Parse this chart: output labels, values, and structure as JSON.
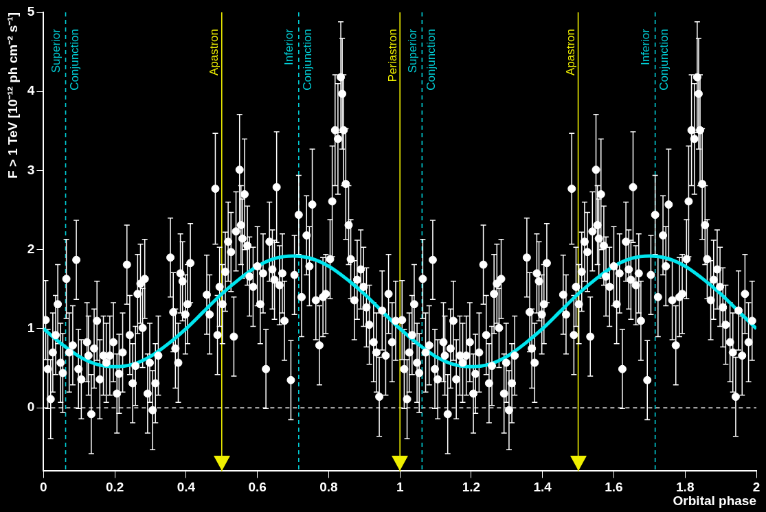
{
  "chart_data": {
    "type": "scatter",
    "xlabel": "Orbital phase",
    "ylabel": "F > 1 TeV [10⁻¹² ph cm⁻² s⁻¹]",
    "xlim": [
      0,
      2
    ],
    "xticks": [
      0,
      {
        "value": 0.2,
        "label": "0.2"
      },
      {
        "value": 0.4,
        "label": "0.4"
      },
      {
        "value": 0.6,
        "label": "0.6"
      },
      {
        "value": 0.8,
        "label": "0.8"
      },
      1,
      {
        "value": 1.2,
        "label": "1.2"
      },
      {
        "value": 1.4,
        "label": "1.4"
      },
      {
        "value": 1.6,
        "label": "1.6"
      },
      {
        "value": 1.8,
        "label": "1.8"
      },
      2
    ],
    "ylim": [
      -0.8,
      5
    ],
    "yticks": [
      0,
      1,
      2,
      3,
      4,
      5
    ],
    "grid": false,
    "legend": false,
    "series": [
      {
        "color": "#ffffff",
        "marker": "circle",
        "x": [
          0.006,
          0.012,
          0.02,
          0.026,
          0.034,
          0.04,
          0.048,
          0.054,
          0.064,
          0.072,
          0.082,
          0.092,
          0.098,
          0.106,
          0.122,
          0.126,
          0.134,
          0.142,
          0.15,
          0.158,
          0.168,
          0.176,
          0.186,
          0.196,
          0.206,
          0.212,
          0.222,
          0.234,
          0.242,
          0.25,
          0.258,
          0.264,
          0.272,
          0.278,
          0.284,
          0.292,
          0.298,
          0.306,
          0.314,
          0.322,
          0.356,
          0.364,
          0.37,
          0.378,
          0.384,
          0.39,
          0.398,
          0.404,
          0.412,
          0.458,
          0.466,
          0.482,
          0.488,
          0.494,
          0.502,
          0.51,
          0.518,
          0.526,
          0.534,
          0.54,
          0.55,
          0.554,
          0.558,
          0.564,
          0.572,
          0.578,
          0.588,
          0.6,
          0.608,
          0.616,
          0.624,
          0.634,
          0.642,
          0.648,
          0.654,
          0.662,
          0.67,
          0.676,
          0.694,
          0.704,
          0.716,
          0.724,
          0.738,
          0.746,
          0.754,
          0.764,
          0.774,
          0.784,
          0.792,
          0.804,
          0.81,
          0.818,
          0.826,
          0.834,
          0.838,
          0.842,
          0.848,
          0.856,
          0.862,
          0.872,
          0.88,
          0.89,
          0.898,
          0.906,
          0.914,
          0.926,
          0.934,
          0.942,
          0.95,
          0.96,
          0.968,
          0.978,
          0.988,
          1.006,
          1.012,
          1.02,
          1.026,
          1.034,
          1.04,
          1.048,
          1.054,
          1.064,
          1.072,
          1.082,
          1.092,
          1.098,
          1.106,
          1.122,
          1.126,
          1.134,
          1.142,
          1.15,
          1.158,
          1.168,
          1.176,
          1.186,
          1.196,
          1.206,
          1.212,
          1.222,
          1.234,
          1.242,
          1.25,
          1.258,
          1.264,
          1.272,
          1.278,
          1.284,
          1.292,
          1.298,
          1.306,
          1.314,
          1.322,
          1.356,
          1.364,
          1.37,
          1.378,
          1.384,
          1.39,
          1.398,
          1.404,
          1.412,
          1.458,
          1.466,
          1.482,
          1.488,
          1.494,
          1.502,
          1.51,
          1.518,
          1.526,
          1.534,
          1.54,
          1.55,
          1.554,
          1.558,
          1.564,
          1.572,
          1.578,
          1.588,
          1.6,
          1.608,
          1.616,
          1.624,
          1.634,
          1.642,
          1.648,
          1.654,
          1.662,
          1.67,
          1.676,
          1.694,
          1.704,
          1.716,
          1.724,
          1.738,
          1.746,
          1.754,
          1.764,
          1.774,
          1.784,
          1.792,
          1.804,
          1.81,
          1.818,
          1.826,
          1.834,
          1.838,
          1.842,
          1.848,
          1.856,
          1.862,
          1.872,
          1.88,
          1.89,
          1.898,
          1.906,
          1.914,
          1.926,
          1.934,
          1.942,
          1.95,
          1.96,
          1.968,
          1.978,
          1.988
        ],
        "values": [
          1.11,
          0.49,
          0.11,
          0.7,
          0.92,
          1.31,
          0.57,
          0.44,
          1.63,
          0.7,
          0.79,
          1.87,
          0.49,
          0.36,
          0.83,
          0.66,
          -0.08,
          0.75,
          1.1,
          0.36,
          0.66,
          0.57,
          0.66,
          0.83,
          0.18,
          0.43,
          0.7,
          1.81,
          0.92,
          0.31,
          0.53,
          1.44,
          1.57,
          1.01,
          1.63,
          0.18,
          0.57,
          -0.03,
          0.31,
          0.66,
          1.9,
          1.21,
          0.75,
          0.57,
          1.7,
          1.6,
          1.18,
          1.31,
          1.83,
          1.43,
          1.18,
          2.77,
          0.92,
          1.53,
          1.31,
          1.72,
          2.1,
          1.97,
          0.9,
          2.23,
          3.01,
          2.31,
          2.14,
          2.7,
          2.05,
          1.66,
          1.53,
          1.79,
          1.31,
          1.7,
          0.49,
          2.1,
          1.75,
          1.62,
          2.79,
          1.55,
          1.7,
          1.1,
          0.35,
          1.68,
          2.44,
          1.4,
          2.18,
          1.79,
          2.57,
          1.36,
          0.79,
          1.4,
          1.44,
          1.88,
          2.61,
          3.51,
          3.4,
          4.18,
          3.97,
          3.51,
          2.83,
          2.31,
          1.88,
          1.36,
          1.62,
          1.75,
          1.53,
          1.27,
          1.05,
          0.83,
          0.7,
          0.14,
          1.23,
          0.66,
          1.44,
          0.83,
          1.1,
          1.11,
          0.49,
          0.11,
          0.7,
          0.92,
          1.31,
          0.57,
          0.44,
          1.63,
          0.7,
          0.79,
          1.87,
          0.49,
          0.36,
          0.83,
          0.66,
          -0.08,
          0.75,
          1.1,
          0.36,
          0.66,
          0.57,
          0.66,
          0.83,
          0.18,
          0.43,
          0.7,
          1.81,
          0.92,
          0.31,
          0.53,
          1.44,
          1.57,
          1.01,
          1.63,
          0.18,
          0.57,
          -0.03,
          0.31,
          0.66,
          1.9,
          1.21,
          0.75,
          0.57,
          1.7,
          1.6,
          1.18,
          1.31,
          1.83,
          1.43,
          1.18,
          2.77,
          0.92,
          1.53,
          1.31,
          1.72,
          2.1,
          1.97,
          0.9,
          2.23,
          3.01,
          2.31,
          2.14,
          2.7,
          2.05,
          1.66,
          1.53,
          1.79,
          1.31,
          1.7,
          0.49,
          2.1,
          1.75,
          1.62,
          2.79,
          1.55,
          1.7,
          1.1,
          0.35,
          1.68,
          2.44,
          1.4,
          2.18,
          1.79,
          2.57,
          1.36,
          0.79,
          1.4,
          1.44,
          1.88,
          2.61,
          3.51,
          3.4,
          4.18,
          3.97,
          3.51,
          2.83,
          2.31,
          1.88,
          1.36,
          1.62,
          1.75,
          1.53,
          1.27,
          1.05,
          0.83,
          0.7,
          0.14,
          1.23,
          0.66,
          1.44,
          0.83,
          1.1
        ],
        "errors": [
          0.5,
          0.5,
          0.5,
          0.5,
          0.5,
          0.5,
          0.5,
          0.5,
          0.5,
          0.5,
          0.5,
          0.5,
          0.5,
          0.5,
          0.5,
          0.5,
          0.5,
          0.5,
          0.5,
          0.5,
          0.5,
          0.5,
          0.5,
          0.5,
          0.5,
          0.5,
          0.5,
          0.5,
          0.5,
          0.5,
          0.5,
          0.5,
          0.5,
          0.5,
          0.5,
          0.5,
          0.5,
          0.5,
          0.5,
          0.5,
          0.5,
          0.5,
          0.5,
          0.5,
          0.5,
          0.5,
          0.5,
          0.5,
          0.5,
          0.5,
          0.5,
          0.7,
          0.5,
          0.5,
          0.5,
          0.5,
          0.5,
          0.5,
          0.5,
          0.5,
          0.7,
          0.5,
          0.5,
          0.7,
          0.5,
          0.5,
          0.5,
          0.5,
          0.5,
          0.5,
          0.5,
          0.5,
          0.5,
          0.5,
          0.7,
          0.5,
          0.5,
          0.5,
          0.5,
          0.5,
          0.5,
          0.5,
          0.5,
          0.5,
          0.7,
          0.5,
          0.5,
          0.5,
          0.5,
          0.5,
          0.7,
          0.7,
          0.7,
          0.7,
          0.7,
          0.7,
          0.7,
          0.5,
          0.5,
          0.5,
          0.5,
          0.5,
          0.5,
          0.5,
          0.5,
          0.5,
          0.5,
          0.5,
          0.5,
          0.5,
          0.5,
          0.5,
          0.5,
          0.5,
          0.5,
          0.5,
          0.5,
          0.5,
          0.5,
          0.5,
          0.5,
          0.5,
          0.5,
          0.5,
          0.5,
          0.5,
          0.5,
          0.5,
          0.5,
          0.5,
          0.5,
          0.5,
          0.5,
          0.5,
          0.5,
          0.5,
          0.5,
          0.5,
          0.5,
          0.5,
          0.5,
          0.5,
          0.5,
          0.5,
          0.5,
          0.5,
          0.5,
          0.5,
          0.5,
          0.5,
          0.5,
          0.5,
          0.5,
          0.5,
          0.5,
          0.5,
          0.5,
          0.5,
          0.5,
          0.5,
          0.5,
          0.5,
          0.5,
          0.5,
          0.7,
          0.5,
          0.5,
          0.5,
          0.5,
          0.5,
          0.5,
          0.5,
          0.5,
          0.7,
          0.5,
          0.5,
          0.7,
          0.5,
          0.5,
          0.5,
          0.5,
          0.5,
          0.5,
          0.5,
          0.5,
          0.5,
          0.5,
          0.7,
          0.5,
          0.5,
          0.5,
          0.5,
          0.5,
          0.5,
          0.5,
          0.5,
          0.5,
          0.7,
          0.5,
          0.5,
          0.5,
          0.5,
          0.5,
          0.7,
          0.7,
          0.7,
          0.7,
          0.7,
          0.7,
          0.7,
          0.5,
          0.5,
          0.5,
          0.5,
          0.5,
          0.5,
          0.5,
          0.5,
          0.5,
          0.5,
          0.5,
          0.5,
          0.5,
          0.5,
          0.5,
          0.5
        ]
      },
      {
        "type": "line",
        "color": "#00e5ee",
        "marker": "none",
        "x": [
          0,
          0.05,
          0.1,
          0.15,
          0.2,
          0.25,
          0.3,
          0.35,
          0.4,
          0.45,
          0.5,
          0.55,
          0.6,
          0.65,
          0.7,
          0.75,
          0.8,
          0.85,
          0.9,
          0.95,
          1,
          1.05,
          1.1,
          1.15,
          1.2,
          1.25,
          1.3,
          1.35,
          1.4,
          1.45,
          1.5,
          1.55,
          1.6,
          1.65,
          1.7,
          1.75,
          1.8,
          1.85,
          1.9,
          1.95,
          2
        ],
        "values": [
          1.0,
          0.81,
          0.65,
          0.55,
          0.52,
          0.55,
          0.65,
          0.81,
          1.0,
          1.22,
          1.44,
          1.63,
          1.79,
          1.89,
          1.92,
          1.89,
          1.79,
          1.63,
          1.44,
          1.22,
          1.0,
          0.81,
          0.65,
          0.55,
          0.52,
          0.55,
          0.65,
          0.81,
          1.0,
          1.22,
          1.44,
          1.63,
          1.79,
          1.89,
          1.92,
          1.89,
          1.79,
          1.63,
          1.44,
          1.22,
          1.0
        ]
      }
    ],
    "ref_lines": [
      {
        "axis": "y",
        "value": 0,
        "color": "#ffffff",
        "line_style": "dashed"
      },
      {
        "axis": "x",
        "value": 0.062,
        "label": "Superior Conjunction",
        "color": "#00d0d8",
        "line_style": "dashed"
      },
      {
        "axis": "x",
        "value": 0.5,
        "label": "Apastron",
        "color": "#f0f000",
        "line_style": "solid"
      },
      {
        "axis": "x",
        "value": 0.716,
        "label": "Inferior Conjunction",
        "color": "#00d0d8",
        "line_style": "dashed"
      },
      {
        "axis": "x",
        "value": 1,
        "label": "Periastron",
        "color": "#f0f000",
        "line_style": "solid"
      },
      {
        "axis": "x",
        "value": 1.062,
        "label": "Superior Conjunction",
        "color": "#00d0d8",
        "line_style": "dashed"
      },
      {
        "axis": "x",
        "value": 1.5,
        "label": "Apastron",
        "color": "#f0f000",
        "line_style": "solid"
      },
      {
        "axis": "x",
        "value": 1.716,
        "label": "Inferior Conjunction",
        "color": "#00d0d8",
        "line_style": "dashed"
      }
    ]
  }
}
